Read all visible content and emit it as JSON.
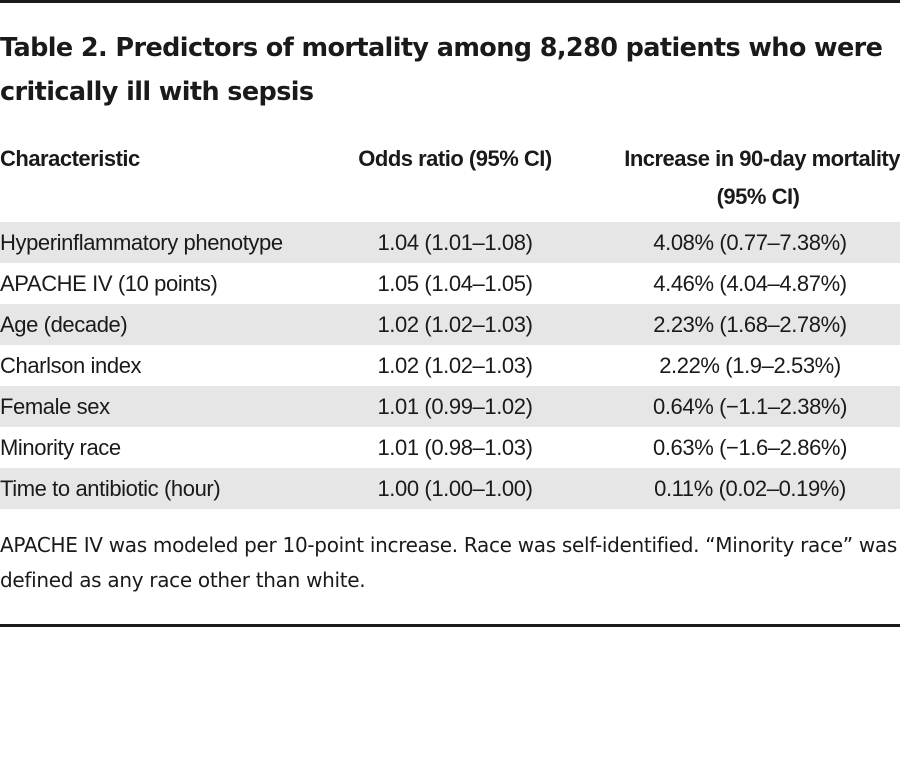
{
  "table": {
    "title": "Table 2. Predictors of mortality among 8,280 patients who were critically ill with sepsis",
    "headers": {
      "characteristic": "Characteristic",
      "odds_ratio": "Odds ratio (95% CI)",
      "mortality_line1": "Increase in 90-day mortality",
      "mortality_line2": "(95% CI)"
    },
    "rows": [
      {
        "characteristic": "Hyperinflammatory phenotype",
        "odds_ratio": "1.04 (1.01–1.08)",
        "mortality": "4.08% (0.77–7.38%)",
        "shaded": true
      },
      {
        "characteristic": "APACHE IV (10 points)",
        "odds_ratio": "1.05 (1.04–1.05)",
        "mortality": "4.46% (4.04–4.87%)",
        "shaded": false
      },
      {
        "characteristic": "Age (decade)",
        "odds_ratio": "1.02 (1.02–1.03)",
        "mortality": "2.23% (1.68–2.78%)",
        "shaded": true
      },
      {
        "characteristic": "Charlson index",
        "odds_ratio": "1.02 (1.02–1.03)",
        "mortality": "2.22% (1.9–2.53%)",
        "shaded": false
      },
      {
        "characteristic": "Female sex",
        "odds_ratio": "1.01 (0.99–1.02)",
        "mortality": "0.64% (−1.1–2.38%)",
        "shaded": true
      },
      {
        "characteristic": "Minority race",
        "odds_ratio": "1.01 (0.98–1.03)",
        "mortality": "0.63% (−1.6–2.86%)",
        "shaded": false
      },
      {
        "characteristic": "Time to antibiotic (hour)",
        "odds_ratio": "1.00 (1.00–1.00)",
        "mortality": "0.11% (0.02–0.19%)",
        "shaded": true
      }
    ],
    "footnote": "APACHE IV was modeled per 10-point increase. Race was self-identified. “Minority race” was defined as any race other than white."
  }
}
